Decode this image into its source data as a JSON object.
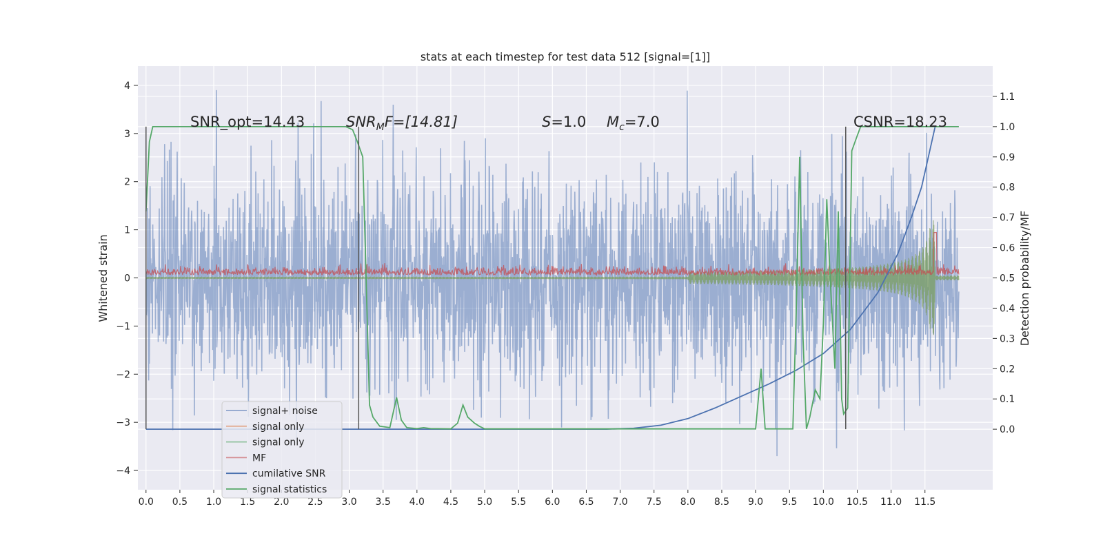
{
  "chart_data": {
    "type": "line",
    "title": "stats at each timestep for test data 512 [signal=[1]]",
    "xlabel": "",
    "ylabel": "Whitened strain",
    "y2label": "Detection probability/MF",
    "xlim": [
      -0.12,
      12.5
    ],
    "ylim": [
      -4.4,
      4.4
    ],
    "y2lim": [
      -0.2,
      1.2
    ],
    "x_ticks": [
      0.0,
      0.5,
      1.0,
      1.5,
      2.0,
      2.5,
      3.0,
      3.5,
      4.0,
      4.5,
      5.0,
      5.5,
      6.0,
      6.5,
      7.0,
      7.5,
      8.0,
      8.5,
      9.0,
      9.5,
      10.0,
      10.5,
      11.0,
      11.5
    ],
    "x_tick_labels": [
      "0.0",
      "0.5",
      "1.0",
      "1.5",
      "2.0",
      "2.5",
      "3.0",
      "3.5",
      "4.0",
      "4.5",
      "5.0",
      "5.5",
      "6.0",
      "6.5",
      "7.0",
      "7.5",
      "8.0",
      "8.5",
      "9.0",
      "9.5",
      "10.0",
      "10.5",
      "11.0",
      "11.5"
    ],
    "y_ticks": [
      -4,
      -3,
      -2,
      -1,
      0,
      1,
      2,
      3,
      4
    ],
    "y_tick_labels": [
      "−4",
      "−3",
      "−2",
      "−1",
      "0",
      "1",
      "2",
      "3",
      "4"
    ],
    "y2_ticks": [
      0.0,
      0.1,
      0.2,
      0.3,
      0.4,
      0.5,
      0.6,
      0.7,
      0.8,
      0.9,
      1.0,
      1.1
    ],
    "y2_tick_labels": [
      "0.0",
      "0.1",
      "0.2",
      "0.3",
      "0.4",
      "0.5",
      "0.6",
      "0.7",
      "0.8",
      "0.9",
      "1.0",
      "1.1"
    ],
    "grid": true,
    "legend_position": "lower-left",
    "annotations": {
      "snr_opt": "SNR_opt=14.43",
      "snr_mf_prefix": "SNR",
      "snr_mf_sub": "M",
      "snr_mf_suffix": "F=[14.81]",
      "s_label": "S",
      "s_value": "=1.0",
      "mc_label": "M",
      "mc_sub": "c",
      "mc_value": "=7.0",
      "csnr": "CSNR=18.23"
    },
    "vertical_lines": [
      0.0,
      3.14,
      10.33
    ],
    "series": [
      {
        "name": "signal+ noise",
        "axis": "left",
        "style": "noise",
        "color": "#4c72b0",
        "x_range": [
          0.0,
          12.0
        ],
        "envelope": {
          "typical": 2.0,
          "peak": 3.9
        }
      },
      {
        "name": "signal only",
        "axis": "left",
        "style": "chirp",
        "color": "#dd8452",
        "x_range": [
          0.0,
          12.0
        ]
      },
      {
        "name": "signal only",
        "axis": "left",
        "style": "chirp",
        "color": "#55a868",
        "x_range": [
          0.0,
          12.0
        ],
        "chirp": {
          "merger_x": 11.65,
          "pre_amp": 0.02,
          "peak_amp": 1.2
        }
      },
      {
        "name": "MF",
        "axis": "right",
        "style": "mf",
        "color": "#c44e52",
        "x_range": [
          0.0,
          12.0
        ],
        "baseline": 0.51,
        "peak": {
          "x": 11.65,
          "y": 0.65
        }
      },
      {
        "name": "cumilative SNR",
        "axis": "right",
        "style": "line",
        "color": "#4c72b0",
        "points": [
          [
            0.0,
            0.0
          ],
          [
            6.8,
            0.0
          ],
          [
            7.2,
            0.003
          ],
          [
            7.6,
            0.013
          ],
          [
            8.0,
            0.035
          ],
          [
            8.4,
            0.07
          ],
          [
            8.8,
            0.11
          ],
          [
            9.2,
            0.15
          ],
          [
            9.6,
            0.195
          ],
          [
            10.0,
            0.25
          ],
          [
            10.4,
            0.33
          ],
          [
            10.8,
            0.45
          ],
          [
            11.1,
            0.58
          ],
          [
            11.3,
            0.7
          ],
          [
            11.45,
            0.8
          ],
          [
            11.55,
            0.9
          ],
          [
            11.65,
            1.0
          ]
        ]
      },
      {
        "name": "signal statistics",
        "axis": "right",
        "style": "line",
        "color": "#55a868",
        "points": [
          [
            0.0,
            0.72
          ],
          [
            0.05,
            0.95
          ],
          [
            0.1,
            1.0
          ],
          [
            2.95,
            1.0
          ],
          [
            3.05,
            0.99
          ],
          [
            3.12,
            0.95
          ],
          [
            3.2,
            0.9
          ],
          [
            3.25,
            0.5
          ],
          [
            3.3,
            0.08
          ],
          [
            3.35,
            0.04
          ],
          [
            3.45,
            0.01
          ],
          [
            3.6,
            0.005
          ],
          [
            3.7,
            0.105
          ],
          [
            3.77,
            0.03
          ],
          [
            3.85,
            0.005
          ],
          [
            4.0,
            0.002
          ],
          [
            4.1,
            0.005
          ],
          [
            4.2,
            0.002
          ],
          [
            4.5,
            0.001
          ],
          [
            4.6,
            0.02
          ],
          [
            4.68,
            0.08
          ],
          [
            4.75,
            0.04
          ],
          [
            4.85,
            0.02
          ],
          [
            4.92,
            0.01
          ],
          [
            5.0,
            0.001
          ],
          [
            9.0,
            0.001
          ],
          [
            9.08,
            0.2
          ],
          [
            9.14,
            0.001
          ],
          [
            9.55,
            0.001
          ],
          [
            9.6,
            0.4
          ],
          [
            9.65,
            0.9
          ],
          [
            9.7,
            0.3
          ],
          [
            9.75,
            0.001
          ],
          [
            9.8,
            0.04
          ],
          [
            9.88,
            0.13
          ],
          [
            9.95,
            0.1
          ],
          [
            10.0,
            0.35
          ],
          [
            10.05,
            0.76
          ],
          [
            10.1,
            0.5
          ],
          [
            10.17,
            0.2
          ],
          [
            10.22,
            0.72
          ],
          [
            10.27,
            0.1
          ],
          [
            10.3,
            0.05
          ],
          [
            10.36,
            0.07
          ],
          [
            10.42,
            0.92
          ],
          [
            10.5,
            0.97
          ],
          [
            10.55,
            1.0
          ],
          [
            11.0,
            1.0
          ],
          [
            11.2,
            1.0
          ],
          [
            11.4,
            1.0
          ],
          [
            12.0,
            1.0
          ]
        ]
      }
    ]
  }
}
